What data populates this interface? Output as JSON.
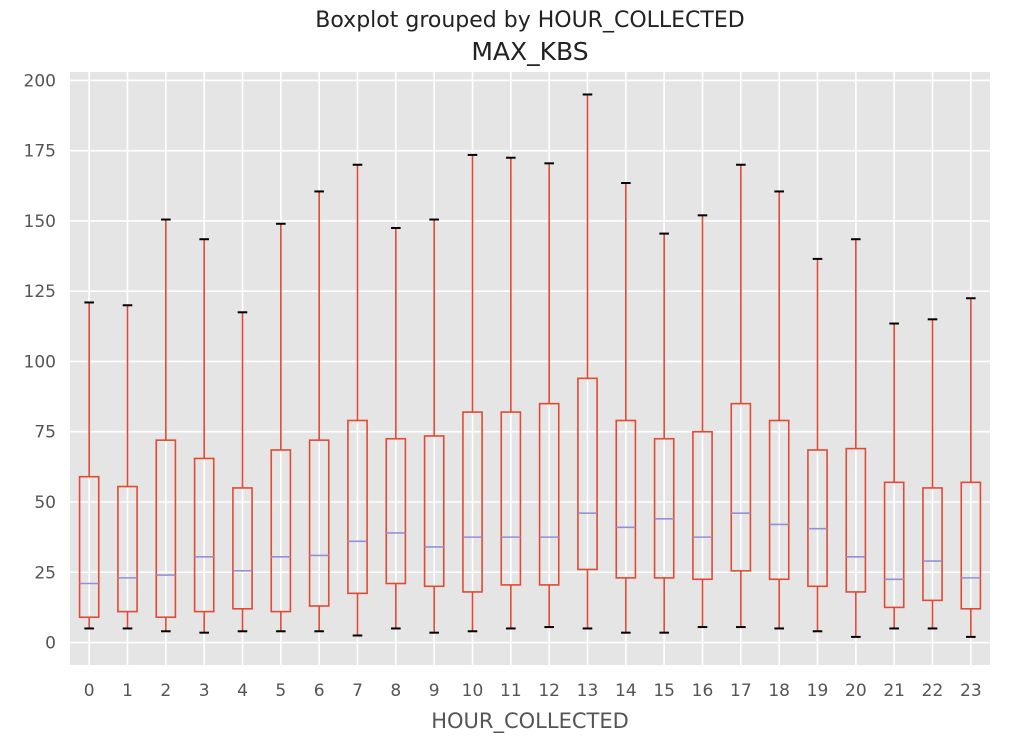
{
  "chart_data": {
    "type": "box",
    "suptitle": "Boxplot grouped by HOUR_COLLECTED",
    "title": "MAX_KBS",
    "xlabel": "HOUR_COLLECTED",
    "ylabel": "",
    "ylim": [
      -8,
      203
    ],
    "yticks": [
      0,
      25,
      50,
      75,
      100,
      125,
      150,
      175,
      200
    ],
    "grid": true,
    "colors": {
      "background": "#e5e5e5",
      "grid": "#ffffff",
      "box": "#e24a33",
      "median": "#988ed5",
      "cap": "#000000"
    },
    "categories": [
      "0",
      "1",
      "2",
      "3",
      "4",
      "5",
      "6",
      "7",
      "8",
      "9",
      "10",
      "11",
      "12",
      "13",
      "14",
      "15",
      "16",
      "17",
      "18",
      "19",
      "20",
      "21",
      "22",
      "23"
    ],
    "boxes": [
      {
        "whislo": 5,
        "q1": 9,
        "median": 21,
        "q3": 59,
        "whishi": 121
      },
      {
        "whislo": 5,
        "q1": 11,
        "median": 23,
        "q3": 55.5,
        "whishi": 120
      },
      {
        "whislo": 4,
        "q1": 9,
        "median": 24,
        "q3": 72,
        "whishi": 150.5
      },
      {
        "whislo": 3.5,
        "q1": 11,
        "median": 30.5,
        "q3": 65.5,
        "whishi": 143.5
      },
      {
        "whislo": 4,
        "q1": 12,
        "median": 25.5,
        "q3": 55,
        "whishi": 117.5
      },
      {
        "whislo": 4,
        "q1": 11,
        "median": 30.5,
        "q3": 68.5,
        "whishi": 149
      },
      {
        "whislo": 4,
        "q1": 13,
        "median": 31,
        "q3": 72,
        "whishi": 160.5
      },
      {
        "whislo": 2.5,
        "q1": 17.5,
        "median": 36,
        "q3": 79,
        "whishi": 170
      },
      {
        "whislo": 5,
        "q1": 21,
        "median": 39,
        "q3": 72.5,
        "whishi": 147.5
      },
      {
        "whislo": 3.5,
        "q1": 20,
        "median": 34,
        "q3": 73.5,
        "whishi": 150.5
      },
      {
        "whislo": 4,
        "q1": 18,
        "median": 37.5,
        "q3": 82,
        "whishi": 173.5
      },
      {
        "whislo": 5,
        "q1": 20.5,
        "median": 37.5,
        "q3": 82,
        "whishi": 172.5
      },
      {
        "whislo": 5.5,
        "q1": 20.5,
        "median": 37.5,
        "q3": 85,
        "whishi": 170.5
      },
      {
        "whislo": 5,
        "q1": 26,
        "median": 46,
        "q3": 94,
        "whishi": 195
      },
      {
        "whislo": 3.5,
        "q1": 23,
        "median": 41,
        "q3": 79,
        "whishi": 163.5
      },
      {
        "whislo": 3.5,
        "q1": 23,
        "median": 44,
        "q3": 72.5,
        "whishi": 145.5
      },
      {
        "whislo": 5.5,
        "q1": 22.5,
        "median": 37.5,
        "q3": 75,
        "whishi": 152
      },
      {
        "whislo": 5.5,
        "q1": 25.5,
        "median": 46,
        "q3": 85,
        "whishi": 170
      },
      {
        "whislo": 5,
        "q1": 22.5,
        "median": 42,
        "q3": 79,
        "whishi": 160.5
      },
      {
        "whislo": 4,
        "q1": 20,
        "median": 40.5,
        "q3": 68.5,
        "whishi": 136.5
      },
      {
        "whislo": 2,
        "q1": 18,
        "median": 30.5,
        "q3": 69,
        "whishi": 143.5
      },
      {
        "whislo": 5,
        "q1": 12.5,
        "median": 22.5,
        "q3": 57,
        "whishi": 113.5
      },
      {
        "whislo": 5,
        "q1": 15,
        "median": 29,
        "q3": 55,
        "whishi": 115
      },
      {
        "whislo": 2,
        "q1": 12,
        "median": 23,
        "q3": 57,
        "whishi": 122.5
      }
    ]
  }
}
